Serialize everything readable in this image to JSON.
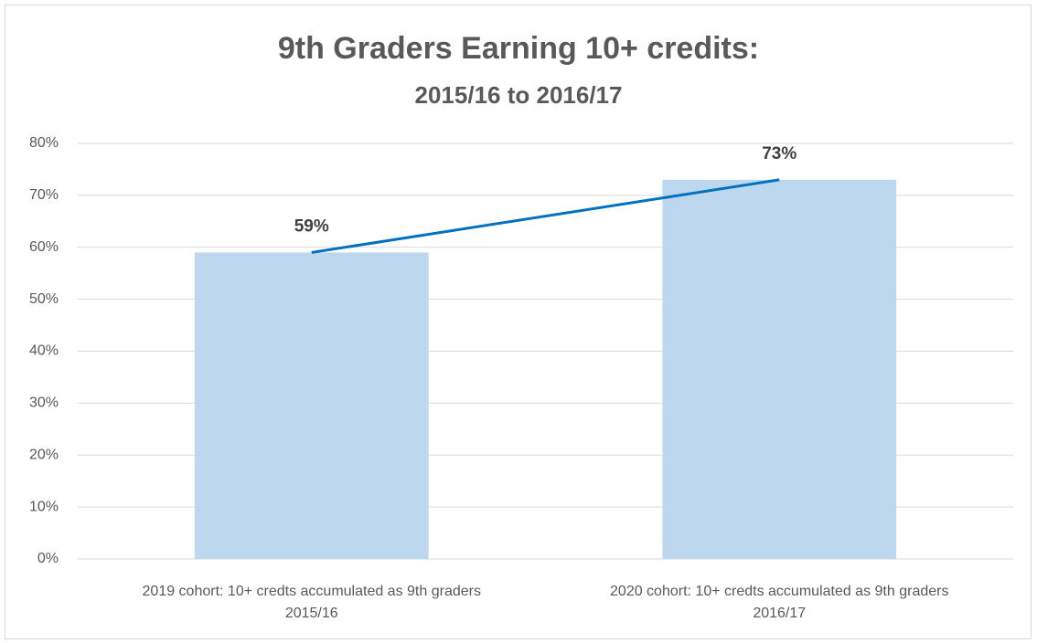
{
  "chart_data": {
    "type": "bar",
    "title": "9th Graders Earning 10+ credits:",
    "subtitle": "2015/16  to 2016/17",
    "categories": [
      [
        "2019 cohort: 10+ credts accumulated as 9th graders",
        "2015/16"
      ],
      [
        "2020 cohort: 10+ credts accumulated as 9th graders",
        "2016/17"
      ]
    ],
    "values": [
      59,
      73
    ],
    "value_labels": [
      "59%",
      "73%"
    ],
    "color": "#bdd7ee",
    "line_color": "#0070c0",
    "ylim": [
      0,
      80
    ],
    "yticks": [
      {
        "value": 0,
        "label": "0%"
      },
      {
        "value": 10,
        "label": "10%"
      },
      {
        "value": 20,
        "label": "20%"
      },
      {
        "value": 30,
        "label": "30%"
      },
      {
        "value": 40,
        "label": "40%"
      },
      {
        "value": 50,
        "label": "50%"
      },
      {
        "value": 60,
        "label": "60%"
      },
      {
        "value": 70,
        "label": "70%"
      },
      {
        "value": 80,
        "label": "80%"
      }
    ],
    "grid": true
  }
}
